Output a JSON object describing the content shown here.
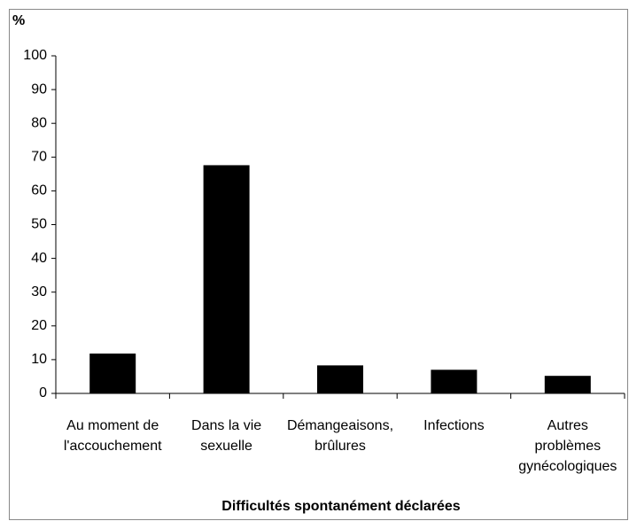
{
  "chart_data": {
    "type": "bar",
    "y_label": "%",
    "x_label": "Difficultés spontanément déclarées",
    "categories": [
      [
        "Au moment de",
        "l'accouchement"
      ],
      [
        "Dans la vie",
        "sexuelle"
      ],
      [
        "Démangeaisons,",
        "brûlures"
      ],
      [
        "Infections"
      ],
      [
        "Autres",
        "problèmes",
        "gynécologiques"
      ]
    ],
    "values": [
      11.8,
      67.6,
      8.3,
      7,
      5.2
    ],
    "color": "#000000",
    "ylim": [
      0,
      100
    ],
    "yticks": [
      0,
      10,
      20,
      30,
      40,
      50,
      60,
      70,
      80,
      90,
      100
    ],
    "grid": false
  }
}
